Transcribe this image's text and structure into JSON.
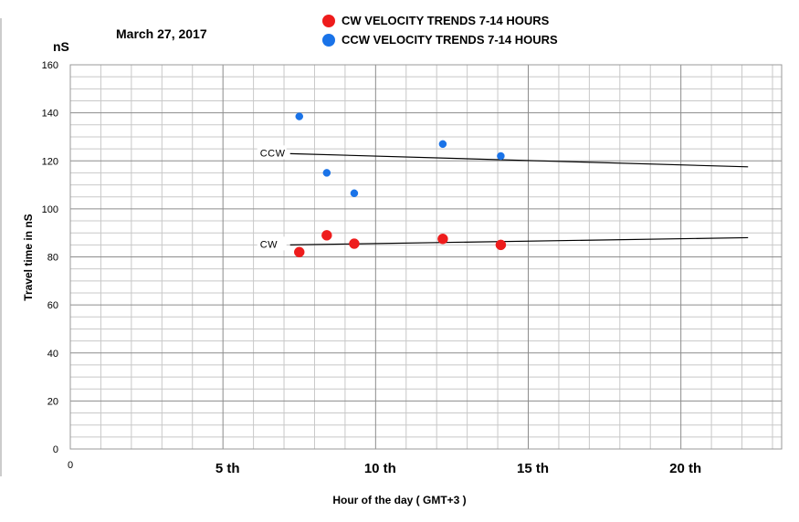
{
  "header": {
    "date": "March 27,  2017",
    "unit": "nS"
  },
  "legend": {
    "items": [
      {
        "label": "CW VELOCITY TRENDS  7-14 HOURS",
        "color": "#ee1c1c"
      },
      {
        "label": "CCW VELOCITY TRENDS 7-14  HOURS",
        "color": "#1a73e8"
      }
    ]
  },
  "chart_data": {
    "type": "scatter",
    "title": "",
    "xlabel": "Hour of the day  ( GMT+3 )",
    "ylabel": "Travel time in nS",
    "xlim": [
      0,
      23.3
    ],
    "ylim": [
      0,
      160
    ],
    "grid": true,
    "x_ticks": [
      {
        "value": 0,
        "label": "0"
      },
      {
        "value": 5,
        "label": "5 th"
      },
      {
        "value": 10,
        "label": "10 th"
      },
      {
        "value": 15,
        "label": "15 th"
      },
      {
        "value": 20,
        "label": "20 th"
      }
    ],
    "y_ticks": [
      0,
      20,
      40,
      60,
      80,
      100,
      120,
      140,
      160
    ],
    "series": [
      {
        "name": "CW VELOCITY TRENDS  7-14 HOURS",
        "color": "#ee1c1c",
        "points": [
          {
            "x": 7.5,
            "y": 82
          },
          {
            "x": 8.4,
            "y": 89
          },
          {
            "x": 9.3,
            "y": 85.5
          },
          {
            "x": 12.2,
            "y": 87.5
          },
          {
            "x": 14.1,
            "y": 85
          }
        ]
      },
      {
        "name": "CCW VELOCITY TRENDS 7-14  HOURS",
        "color": "#1a73e8",
        "points": [
          {
            "x": 7.5,
            "y": 138.5
          },
          {
            "x": 8.4,
            "y": 115
          },
          {
            "x": 9.3,
            "y": 106.5
          },
          {
            "x": 12.2,
            "y": 127
          },
          {
            "x": 14.1,
            "y": 122
          }
        ]
      }
    ],
    "trendlines": [
      {
        "label": "CCW",
        "x": [
          7.2,
          22.2
        ],
        "y": [
          123,
          117.5
        ]
      },
      {
        "label": "CW",
        "x": [
          7.2,
          22.2
        ],
        "y": [
          85,
          88
        ]
      }
    ]
  }
}
